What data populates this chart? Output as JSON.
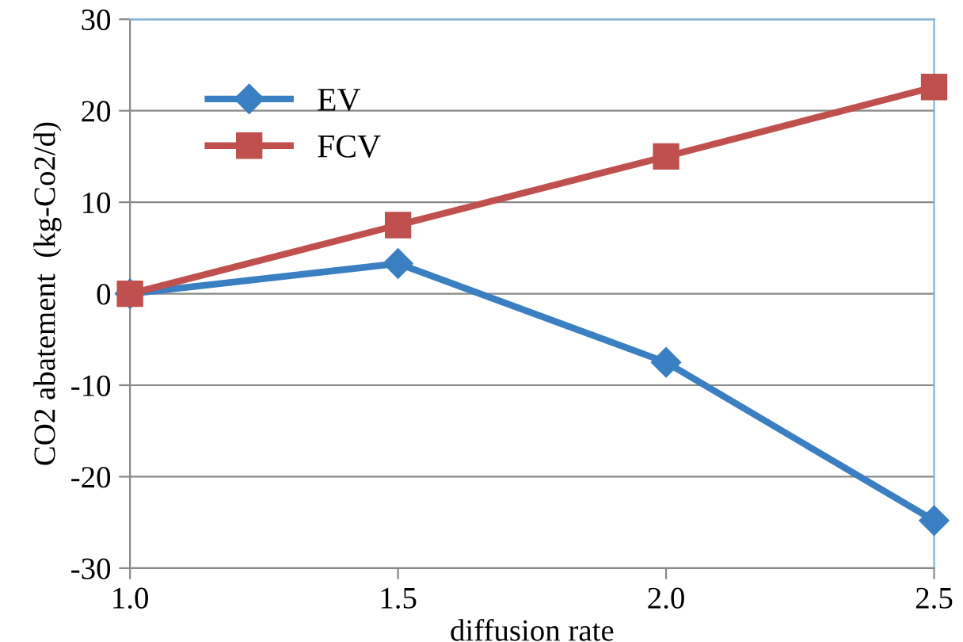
{
  "chart_data": {
    "type": "line",
    "xlabel": "diffusion rate",
    "ylabel": "CO2 abatement  (kg-Co2/d)",
    "x": [
      1.0,
      1.5,
      2.0,
      2.5
    ],
    "series": [
      {
        "name": "EV",
        "color": "#3a7fc1",
        "marker": "diamond",
        "values": [
          0,
          3.3,
          -7.5,
          -24.8
        ]
      },
      {
        "name": "FCV",
        "color": "#c0504d",
        "marker": "square",
        "values": [
          0,
          7.5,
          15.0,
          22.6
        ]
      }
    ],
    "xlim": [
      1.0,
      2.5
    ],
    "xticks": [
      {
        "value": 1.0,
        "label": "1.0"
      },
      {
        "value": 1.5,
        "label": "1.5"
      },
      {
        "value": 2.0,
        "label": "2.0"
      },
      {
        "value": 2.5,
        "label": "2.5"
      }
    ],
    "ylim": [
      -30,
      30
    ],
    "yticks": [
      -30,
      -20,
      -10,
      0,
      10,
      20,
      30
    ],
    "grid": "y",
    "legend": "top left",
    "line_style": "solid"
  }
}
